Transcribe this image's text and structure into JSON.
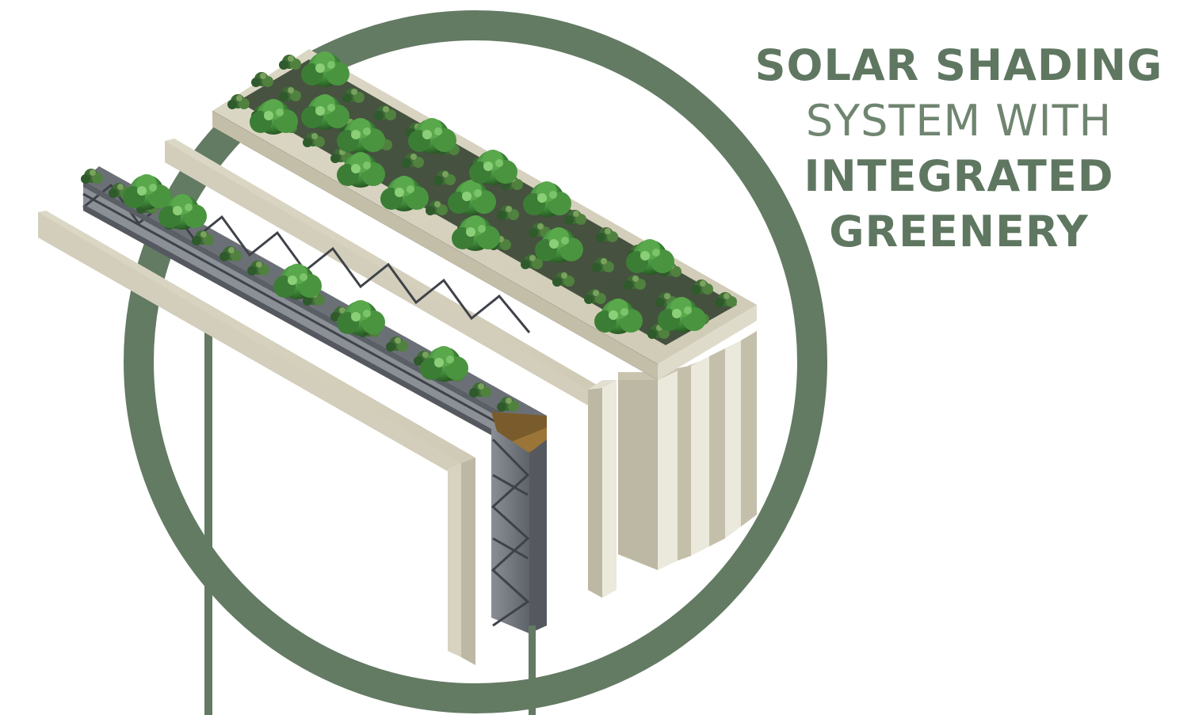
{
  "title": {
    "line1": "SOLAR SHADING",
    "line2": "SYSTEM WITH",
    "line3": "INTEGRATED",
    "line4": "GREENERY"
  },
  "colors": {
    "accent_green": "#5f7761",
    "panel_beige": "#d2cdb8",
    "panel_beige_dark": "#bdb8a3",
    "truss_grey": "#7b7f86",
    "plant_green": "#3f8a3a",
    "plant_dark": "#2f5a2c"
  },
  "icons": [
    "plant-cluster-icon",
    "truss-frame-icon"
  ]
}
